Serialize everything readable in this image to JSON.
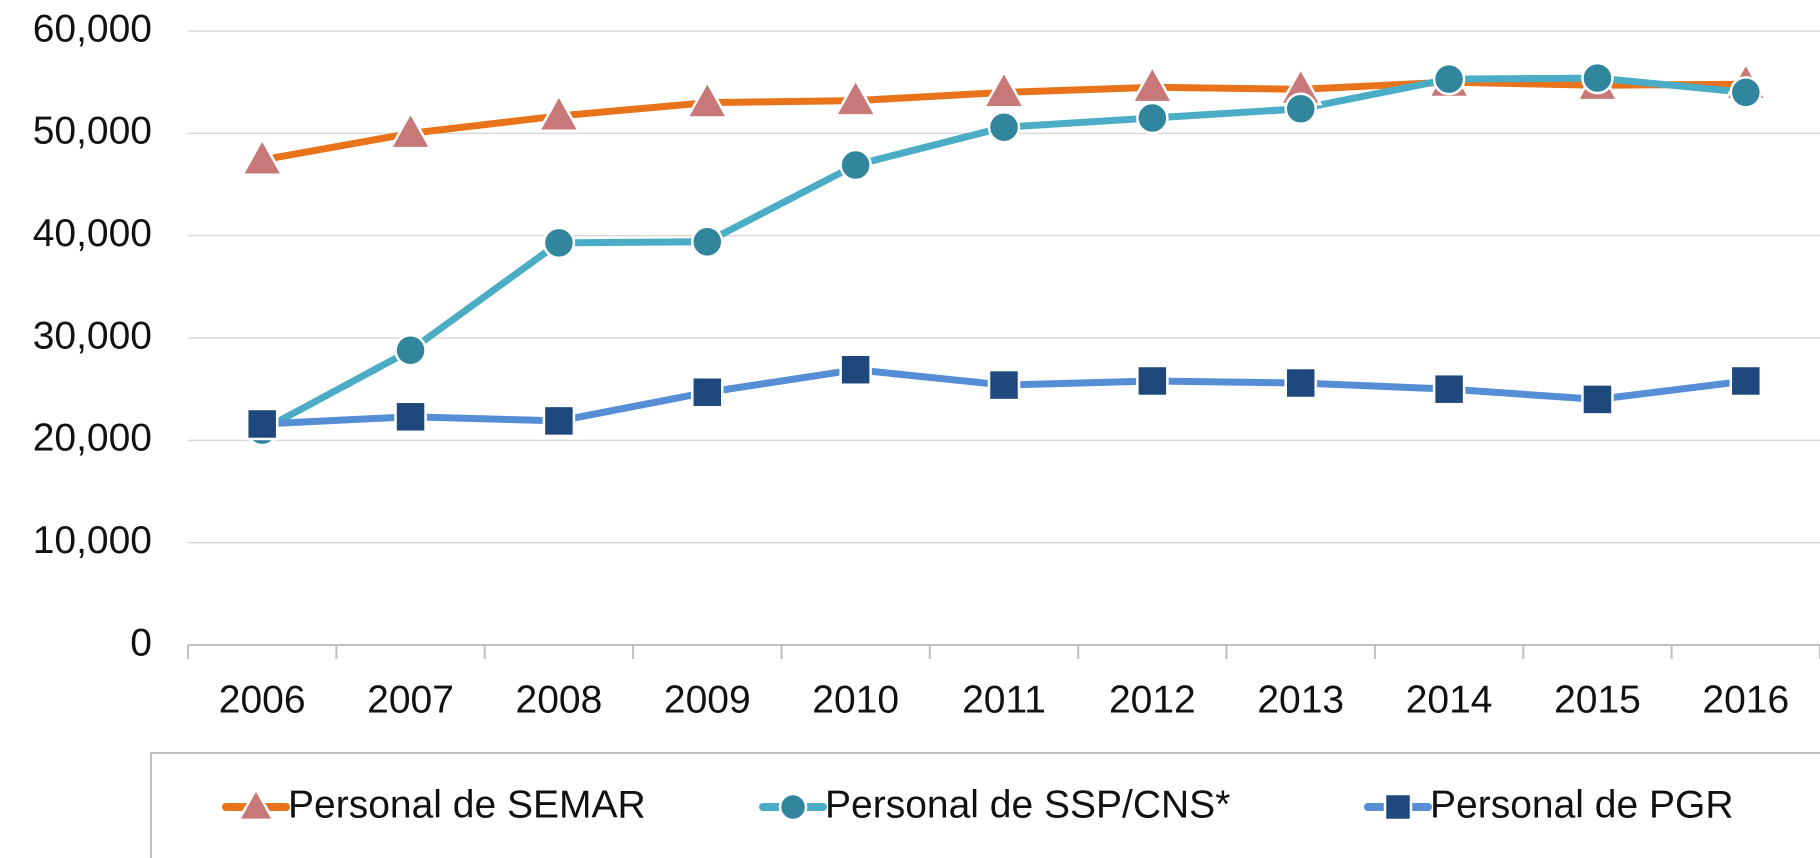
{
  "chart_data": {
    "type": "line",
    "categories": [
      "2006",
      "2007",
      "2008",
      "2009",
      "2010",
      "2011",
      "2012",
      "2013",
      "2014",
      "2015",
      "2016"
    ],
    "series": [
      {
        "name": "Personal de SEMAR",
        "color": "#e8731a",
        "marker": "triangle",
        "marker_color": "#c9787a",
        "values": [
          47400,
          50000,
          51700,
          53000,
          53200,
          54000,
          54500,
          54300,
          55000,
          54700,
          54800
        ]
      },
      {
        "name": "Personal de SSP/CNS*",
        "color": "#4bacc6",
        "marker": "circle",
        "marker_color": "#31859c",
        "values": [
          21000,
          28800,
          39300,
          39400,
          46900,
          50600,
          51500,
          52400,
          55300,
          55400,
          54000
        ]
      },
      {
        "name": "Personal de PGR",
        "color": "#558ed5",
        "marker": "square",
        "marker_color": "#1f497d",
        "values": [
          21600,
          22300,
          21900,
          24700,
          26900,
          25400,
          25800,
          25600,
          25000,
          24000,
          25800
        ]
      }
    ],
    "ylim": [
      0,
      60000
    ],
    "yticks": [
      0,
      {
        "value": 10000,
        "label": "10,000"
      },
      {
        "value": 20000,
        "label": "20,000"
      },
      {
        "value": 30000,
        "label": "30,000"
      },
      {
        "value": 40000,
        "label": "40,000"
      },
      {
        "value": 50000,
        "label": "50,000"
      },
      {
        "value": 60000,
        "label": "60,000"
      }
    ],
    "grid": true,
    "legend": "bottom"
  }
}
